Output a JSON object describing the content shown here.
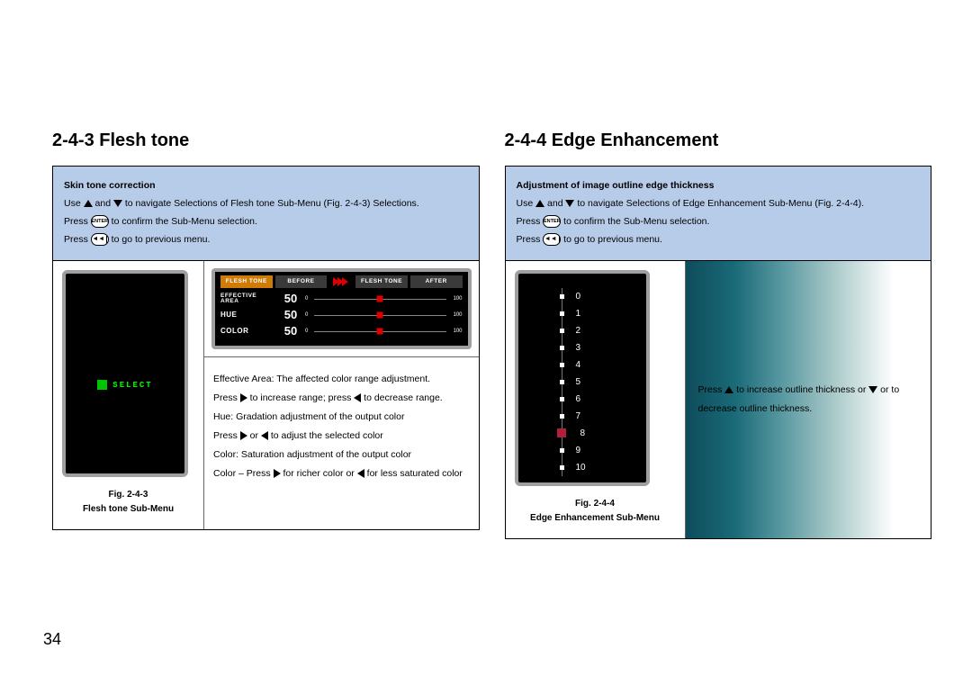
{
  "page_number": "34",
  "left": {
    "title": "2-4-3 Flesh tone",
    "instruction_title": "Skin tone correction",
    "instr1_a": "Use ",
    "instr1_b": " and ",
    "instr1_c": " to navigate Selections of Flesh tone Sub-Menu (Fig. 2-4-3) Selections.",
    "instr2_a": "Press ",
    "instr2_b": " to confirm the Sub-Menu selection.",
    "instr3_a": "Press ",
    "instr3_b": " to go to previous menu.",
    "enter_label": "ENTER",
    "device_select_label": "SELECT",
    "osd": {
      "tabs": [
        "FLESH TONE",
        "BEFORE",
        "FLESH TONE",
        "AFTER"
      ],
      "rows": [
        {
          "label": "EFFECTIVE AREA",
          "value": "50",
          "min": "0",
          "max": "100",
          "pct": 50,
          "small": true
        },
        {
          "label": "HUE",
          "value": "50",
          "min": "0",
          "max": "100",
          "pct": 50
        },
        {
          "label": "COLOR",
          "value": "50",
          "min": "0",
          "max": "100",
          "pct": 50
        }
      ]
    },
    "fig_no": "Fig. 2-4-3",
    "fig_caption": "Flesh tone Sub-Menu",
    "desc1": "Effective Area: The affected color range adjustment.",
    "desc2_a": "Press ",
    "desc2_b": " to increase range; press ",
    "desc2_c": " to decrease range.",
    "desc3": "Hue: Gradation adjustment of the output color",
    "desc4_a": "Press ",
    "desc4_b": " or ",
    "desc4_c": " to adjust the selected color",
    "desc5": "Color: Saturation adjustment of the output color",
    "desc6_a": "Color – Press ",
    "desc6_b": " for richer color or ",
    "desc6_c": " for less saturated color"
  },
  "right": {
    "title": "2-4-4 Edge Enhancement",
    "instruction_title": "Adjustment of image outline edge thickness",
    "instr1_a": "Use ",
    "instr1_b": " and ",
    "instr1_c": " to navigate Selections of Edge Enhancement Sub-Menu (Fig. 2-4-4).",
    "instr2_a": "Press ",
    "instr2_b": " to confirm the Sub-Menu selection.",
    "instr3_a": "Press ",
    "instr3_b": " to go to previous menu.",
    "enter_label": "ENTER",
    "scale": {
      "values": [
        "0",
        "1",
        "2",
        "3",
        "4",
        "5",
        "6",
        "7",
        "8",
        "9",
        "10"
      ],
      "selected": 8
    },
    "fig_no": "Fig. 2-4-4",
    "fig_caption": "Edge Enhancement Sub-Menu",
    "desc_a": "Press ",
    "desc_b": " to increase outline thickness or ",
    "desc_c": " or to decrease outline thickness."
  }
}
